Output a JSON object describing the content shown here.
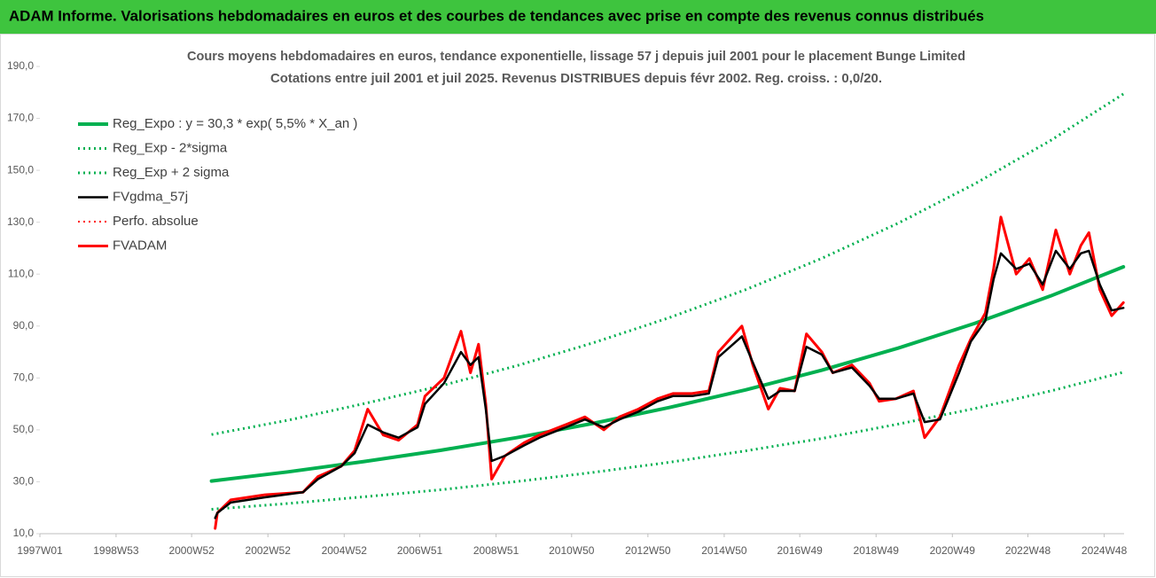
{
  "chart_data": {
    "type": "line",
    "title": "ADAM Informe. Valorisations hebdomadaires en euros et des courbes de tendances avec prise en compte des revenus connus distribués",
    "subtitle": [
      "Cours moyens hebdomadaires en euros, tendance exponentielle, lissage 57 j depuis juil 2001 pour le placement Bunge Limited",
      "Cotations entre juil 2001 et juil 2025. Revenus DISTRIBUES depuis févr 2002. Reg. croiss. : 0,0/20."
    ],
    "xlim": [
      "1997W01",
      "2025W23"
    ],
    "xticks": [
      "1997W01",
      "1998W53",
      "2000W52",
      "2002W52",
      "2004W52",
      "2006W51",
      "2008W51",
      "2010W50",
      "2012W50",
      "2014W50",
      "2016W49",
      "2018W49",
      "2020W49",
      "2022W48",
      "2024W48"
    ],
    "ylim": [
      10,
      190
    ],
    "yticks": [
      {
        "value": 10,
        "label": "10,0"
      },
      {
        "value": 30,
        "label": "30,0"
      },
      {
        "value": 50,
        "label": "50,0"
      },
      {
        "value": 70,
        "label": "70,0"
      },
      {
        "value": 90,
        "label": "90,0"
      },
      {
        "value": 110,
        "label": "110,0"
      },
      {
        "value": 130,
        "label": "130,0"
      },
      {
        "value": 150,
        "label": "150,0"
      },
      {
        "value": 170,
        "label": "170,0"
      },
      {
        "value": 190,
        "label": "190,0"
      }
    ],
    "legend": "top-left",
    "x": [
      "2001W32",
      "2001W35",
      "2002W01",
      "2002W48",
      "2003W48",
      "2004W16",
      "2004W48",
      "2005W14",
      "2005W32",
      "2006W01",
      "2006W22",
      "2006W48",
      "2007W06",
      "2007W32",
      "2008W03",
      "2008W16",
      "2008W27",
      "2008W37",
      "2008W45",
      "2009W11",
      "2009W37",
      "2010W06",
      "2010W42",
      "2011W16",
      "2011W42",
      "2012W11",
      "2012W37",
      "2013W11",
      "2013W32",
      "2014W06",
      "2014W29",
      "2014W42",
      "2015W22",
      "2015W37",
      "2016W06",
      "2016W22",
      "2016W42",
      "2017W06",
      "2017W27",
      "2017W42",
      "2018W16",
      "2018W40",
      "2019W01",
      "2019W24",
      "2019W48",
      "2020W11",
      "2020W32",
      "2021W06",
      "2021W22",
      "2021W42",
      "2022W01",
      "2022W11",
      "2022W32",
      "2022W50",
      "2023W16",
      "2023W34",
      "2024W01",
      "2024W16",
      "2024W27",
      "2024W42",
      "2025W06",
      "2025W22"
    ],
    "series": [
      {
        "name": "Reg_Expo : y = 30,3 * exp( 5,5% *  X_an )",
        "color": "#00b050",
        "style": "solid",
        "width": 4,
        "x": [
          "2001W27",
          "2003W27",
          "2005W27",
          "2007W27",
          "2009W27",
          "2011W27",
          "2013W27",
          "2015W27",
          "2017W27",
          "2019W27",
          "2021W27",
          "2023W27",
          "2025W22"
        ],
        "values": [
          30.3,
          33.8,
          37.8,
          42.1,
          47.0,
          52.5,
          58.6,
          65.4,
          73.0,
          81.5,
          91.0,
          101.6,
          112.8
        ]
      },
      {
        "name": "Reg_Exp - 2*sigma",
        "color": "#00b050",
        "style": "dotted",
        "width": 3,
        "x": [
          "2001W27",
          "2003W27",
          "2005W27",
          "2007W27",
          "2009W27",
          "2011W27",
          "2013W27",
          "2015W27",
          "2017W27",
          "2019W27",
          "2021W27",
          "2023W27",
          "2025W22"
        ],
        "values": [
          19.4,
          21.6,
          24.2,
          26.9,
          30.1,
          33.6,
          37.5,
          41.9,
          46.7,
          52.2,
          58.2,
          65.0,
          72.2
        ]
      },
      {
        "name": "Reg_Exp + 2 sigma",
        "color": "#00b050",
        "style": "dotted",
        "width": 3,
        "x": [
          "2001W27",
          "2003W27",
          "2005W27",
          "2007W27",
          "2009W27",
          "2011W27",
          "2013W27",
          "2015W27",
          "2017W27",
          "2019W27",
          "2021W27",
          "2023W27",
          "2025W22"
        ],
        "values": [
          48.2,
          53.7,
          60.1,
          66.9,
          74.7,
          83.5,
          93.2,
          104.0,
          116.1,
          129.6,
          144.7,
          161.5,
          179.4
        ]
      },
      {
        "name": "FVgdma_57j",
        "color": "#000000",
        "style": "solid",
        "width": 2.5,
        "values": [
          16,
          18,
          22,
          24,
          26,
          31,
          36,
          41,
          52,
          49,
          47,
          51,
          60,
          68,
          80,
          75,
          78,
          58,
          38,
          40,
          44,
          47,
          51,
          54,
          51,
          54,
          57,
          61,
          63,
          63,
          64,
          78,
          86,
          76,
          62,
          65,
          65,
          82,
          79,
          72,
          74,
          67,
          62,
          62,
          64,
          53,
          54,
          72,
          84,
          92,
          108,
          118,
          112,
          114,
          106,
          119,
          112,
          118,
          119,
          106,
          96,
          97
        ]
      },
      {
        "name": "Perfo. absolue",
        "color": "#ff0000",
        "style": "dotted",
        "width": 2
      },
      {
        "name": "FVADAM",
        "color": "#ff0000",
        "style": "solid",
        "width": 3,
        "values": [
          12,
          18,
          23,
          25,
          26,
          32,
          36,
          42,
          58,
          48,
          46,
          52,
          63,
          70,
          88,
          72,
          83,
          60,
          31,
          40,
          45,
          48,
          52,
          55,
          50,
          55,
          58,
          62,
          64,
          64,
          65,
          80,
          90,
          75,
          58,
          66,
          65,
          87,
          80,
          72,
          75,
          68,
          61,
          62,
          65,
          47,
          55,
          75,
          85,
          95,
          112,
          132,
          110,
          116,
          104,
          127,
          110,
          121,
          126,
          104,
          94,
          99
        ]
      }
    ],
    "draw_order": [
      0,
      1,
      2,
      5,
      3
    ]
  }
}
